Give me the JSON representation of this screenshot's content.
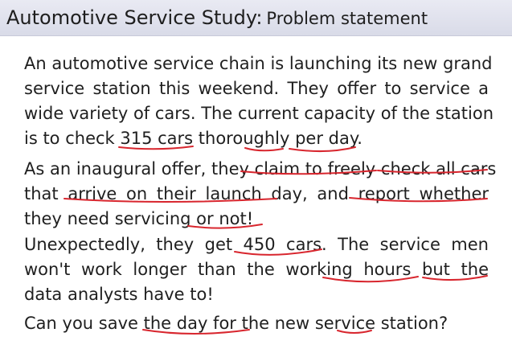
{
  "slide": {
    "title_main": "Automotive Service Study:",
    "title_sub": "Problem statement",
    "paragraphs": [
      {
        "lines": [
          "An automotive service chain is launching its new grand",
          "service station this weekend. They offer to service a",
          "wide variety of cars. The current capacity of the station",
          "is to check 315 cars thoroughly per day."
        ]
      },
      {
        "lines": [
          "As an inaugural offer, they claim to freely check all cars",
          "that arrive on their launch day, and report whether",
          "they need servicing or not!"
        ]
      },
      {
        "lines": [
          "Unexpectedly, they get 450 cars. The service men",
          "won't work longer than the working hours but the",
          "data analysts have to!"
        ]
      },
      {
        "lines": [
          "Can you save the day for the new service station?"
        ]
      }
    ]
  },
  "annotation": {
    "ink_color": "#d8262e"
  }
}
